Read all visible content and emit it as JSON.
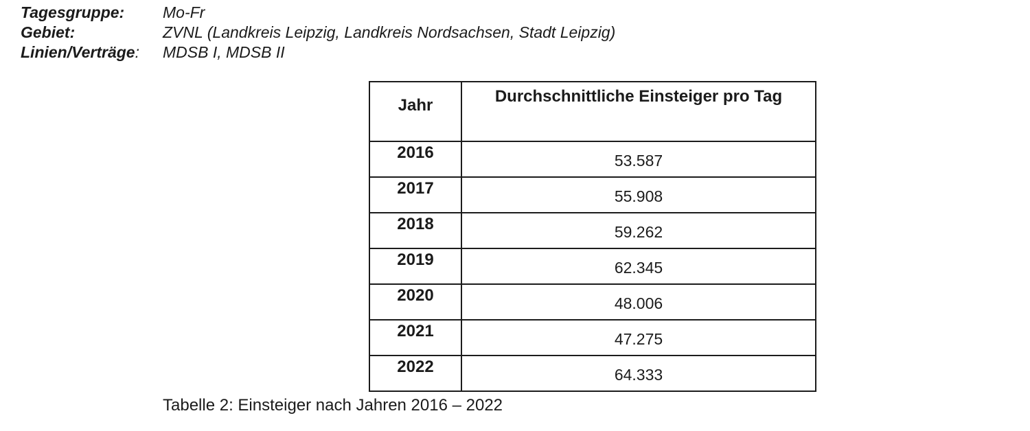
{
  "meta": {
    "rows": [
      {
        "label": "Tagesgruppe:",
        "suffix": "",
        "value": "Mo-Fr"
      },
      {
        "label": "Gebiet:",
        "suffix": "",
        "value": "ZVNL (Landkreis Leipzig, Landkreis Nordsachsen, Stadt Leipzig)"
      },
      {
        "label": "Linien/Verträge",
        "suffix": ":",
        "value": "MDSB I, MDSB II"
      }
    ]
  },
  "table": {
    "columns": [
      "Jahr",
      "Durchschnittliche Einsteiger pro Tag"
    ],
    "rows": [
      {
        "year": "2016",
        "value": "53.587"
      },
      {
        "year": "2017",
        "value": "55.908"
      },
      {
        "year": "2018",
        "value": "59.262"
      },
      {
        "year": "2019",
        "value": "62.345"
      },
      {
        "year": "2020",
        "value": "48.006"
      },
      {
        "year": "2021",
        "value": "47.275"
      },
      {
        "year": "2022",
        "value": "64.333"
      }
    ]
  },
  "caption": "Tabelle 2: Einsteiger nach Jahren 2016 – 2022",
  "colors": {
    "text": "#1b1b1b",
    "border": "#1b1b1b",
    "background": "#ffffff"
  }
}
